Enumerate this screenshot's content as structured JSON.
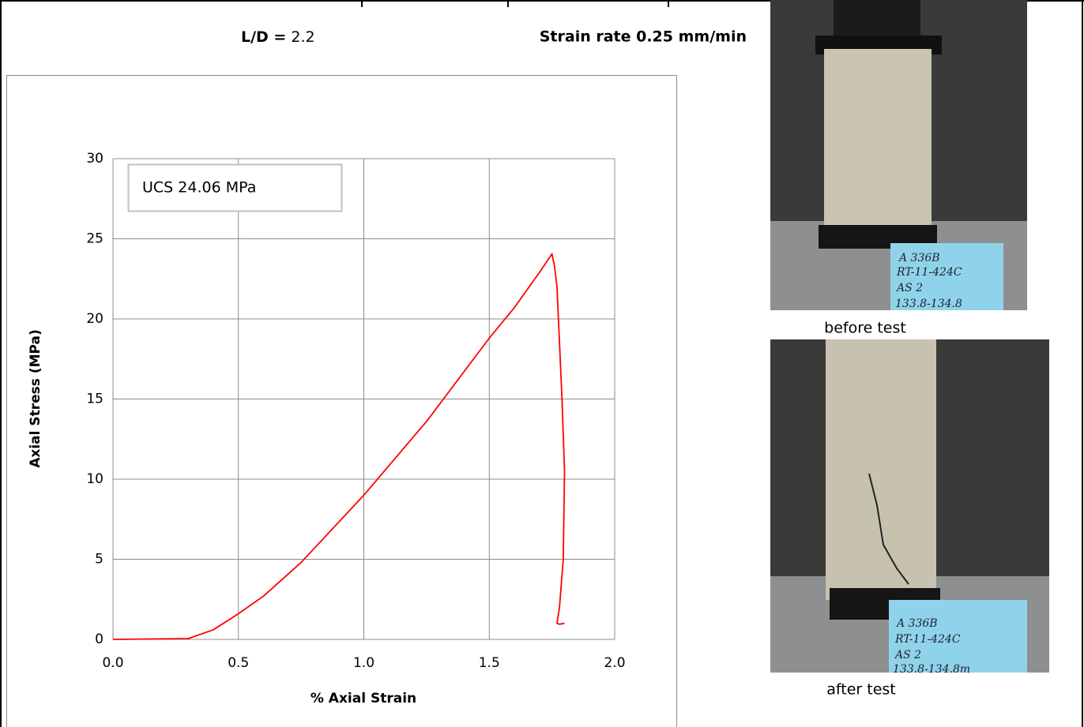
{
  "header": {
    "ld_label": "L/D =",
    "ld_value": 2.2,
    "strain_rate": "Strain rate 0.25 mm/min"
  },
  "chart_data": {
    "type": "line",
    "x_label": "% Axial Strain",
    "y_label": "Axial Stress (MPa)",
    "annotation": "UCS 24.06 MPa",
    "x": [
      0,
      0.3,
      0.4,
      0.5,
      0.6,
      0.75,
      1.0,
      1.25,
      1.5,
      1.6,
      1.7,
      1.75,
      1.76,
      1.77,
      1.79,
      1.8,
      1.795,
      1.78,
      1.77,
      1.78,
      1.8
    ],
    "series": [
      {
        "color": "#ff0000",
        "values": [
          0,
          0.05,
          0.6,
          1.6,
          2.7,
          4.8,
          9.0,
          13.6,
          18.8,
          20.7,
          22.9,
          24.06,
          23.3,
          22,
          15,
          10.5,
          5,
          2,
          1,
          0.95,
          1.0
        ]
      }
    ],
    "xlim": [
      0,
      2
    ],
    "ylim": [
      0,
      30
    ],
    "xticks": [
      {
        "value": 0,
        "label": "0.0"
      },
      {
        "value": 0.5,
        "label": "0.5"
      },
      {
        "value": 1,
        "label": "1.0"
      },
      {
        "value": 1.5,
        "label": "1.5"
      },
      {
        "value": 2,
        "label": "2.0"
      }
    ],
    "yticks": [
      0,
      5,
      10,
      15,
      20,
      25,
      30
    ],
    "grid": true
  },
  "photos": {
    "before": {
      "caption": "before test",
      "tag": [
        "A 336B",
        "RT-11-424C",
        "AS 2",
        "133.8-134.8"
      ]
    },
    "after": {
      "caption": "after test",
      "tag": [
        "A 336B",
        "RT-11-424C",
        "AS 2",
        "133.8-134.8m"
      ]
    }
  }
}
